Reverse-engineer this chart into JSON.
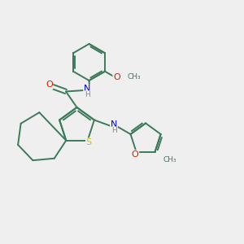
{
  "bg_color": "#efefef",
  "bond_color": "#3d7a5a",
  "atom_colors": {
    "S": "#c8c800",
    "O": "#cc2200",
    "N": "#0000cc",
    "H": "#888888",
    "C": "#3d7a5a"
  }
}
